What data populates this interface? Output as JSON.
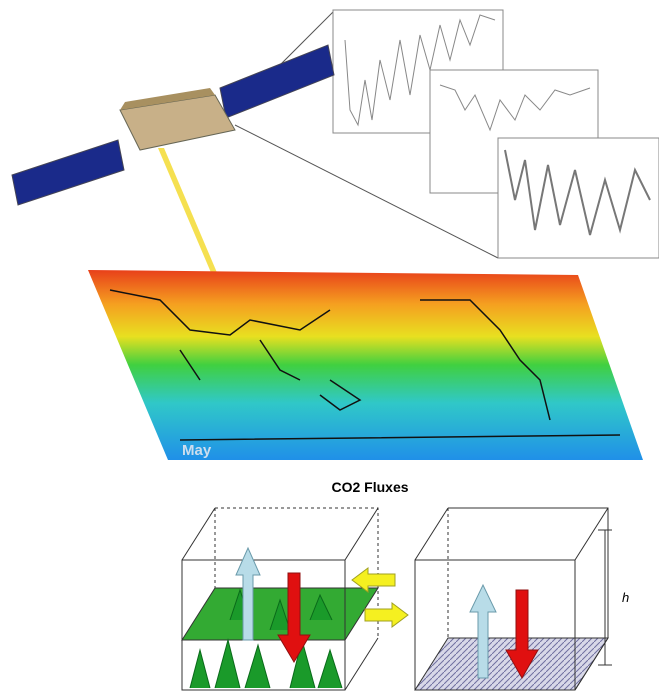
{
  "map": {
    "label": "May"
  },
  "fluxes": {
    "title": "CO2 Fluxes",
    "height_label": "h"
  }
}
